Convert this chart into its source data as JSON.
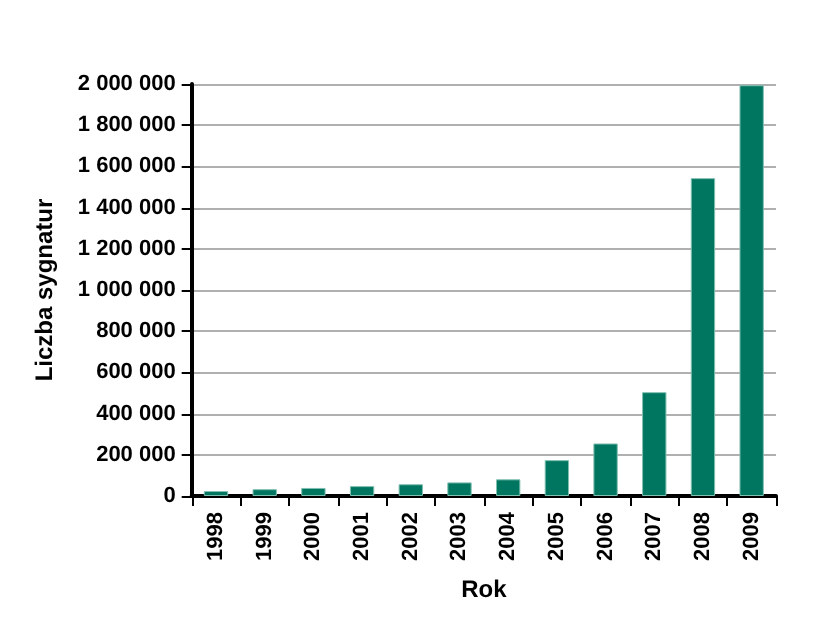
{
  "chart_data": {
    "type": "bar",
    "xlabel": "Rok",
    "ylabel": "Liczba sygnatur",
    "categories": [
      "1998",
      "1999",
      "2000",
      "2001",
      "2002",
      "2003",
      "2004",
      "2005",
      "2006",
      "2007",
      "2008",
      "2009"
    ],
    "values": [
      24000,
      33000,
      39000,
      48000,
      57000,
      66000,
      81000,
      174000,
      255000,
      504000,
      1543000,
      1994000
    ],
    "color": "#007560",
    "ylim": [
      0,
      2000000
    ],
    "yticks": [
      {
        "value": 0,
        "label": "0"
      },
      {
        "value": 200000,
        "label": "200 000"
      },
      {
        "value": 400000,
        "label": "400 000"
      },
      {
        "value": 600000,
        "label": "600 000"
      },
      {
        "value": 800000,
        "label": "800 000"
      },
      {
        "value": 1000000,
        "label": "1 000 000"
      },
      {
        "value": 1200000,
        "label": "1 200 000"
      },
      {
        "value": 1400000,
        "label": "1 400 000"
      },
      {
        "value": 1600000,
        "label": "1 600 000"
      },
      {
        "value": 1800000,
        "label": "1 800 000"
      },
      {
        "value": 2000000,
        "label": "2 000 000"
      }
    ],
    "grid": "y"
  }
}
